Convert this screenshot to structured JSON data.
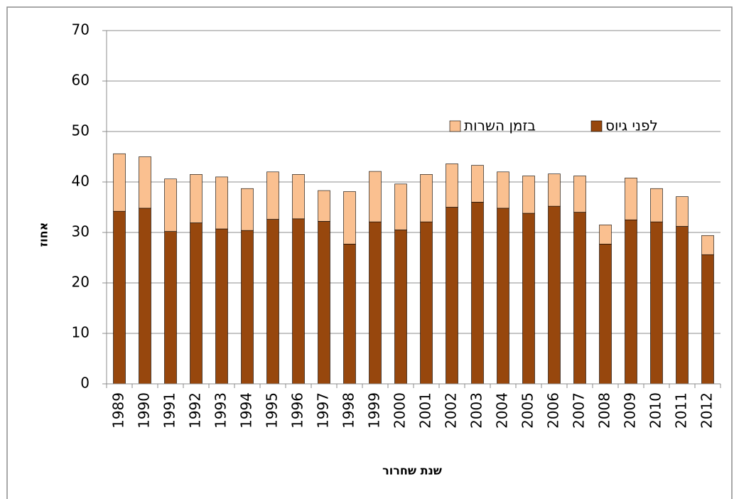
{
  "chart_data": {
    "type": "bar",
    "stacked": true,
    "y_label": "אחוז",
    "x_label": "שנת שחרור",
    "categories": [
      "1989",
      "1990",
      "1991",
      "1992",
      "1993",
      "1994",
      "1995",
      "1996",
      "1997",
      "1998",
      "1999",
      "2000",
      "2001",
      "2002",
      "2003",
      "2004",
      "2005",
      "2006",
      "2007",
      "2008",
      "2009",
      "2010",
      "2011",
      "2012"
    ],
    "series": [
      {
        "name": "לפני גיוס",
        "color": "#97470d",
        "values": [
          34.2,
          34.8,
          30.2,
          31.9,
          30.7,
          30.4,
          32.6,
          32.7,
          32.2,
          27.7,
          32.1,
          30.5,
          32.1,
          35.0,
          36.0,
          34.8,
          33.8,
          35.2,
          34.0,
          27.7,
          32.5,
          32.1,
          31.2,
          25.6
        ]
      },
      {
        "name": "בזמן השרות",
        "color": "#fac090",
        "values": [
          11.4,
          10.2,
          10.4,
          9.6,
          10.3,
          8.3,
          9.4,
          8.8,
          6.1,
          10.4,
          10.0,
          9.1,
          9.4,
          8.6,
          7.3,
          7.2,
          7.4,
          6.4,
          7.2,
          3.8,
          8.3,
          6.6,
          5.9,
          3.8
        ]
      }
    ],
    "ylim": [
      0,
      70
    ],
    "yticks": [
      0,
      10,
      20,
      30,
      40,
      50,
      60,
      70
    ],
    "grid": true
  }
}
